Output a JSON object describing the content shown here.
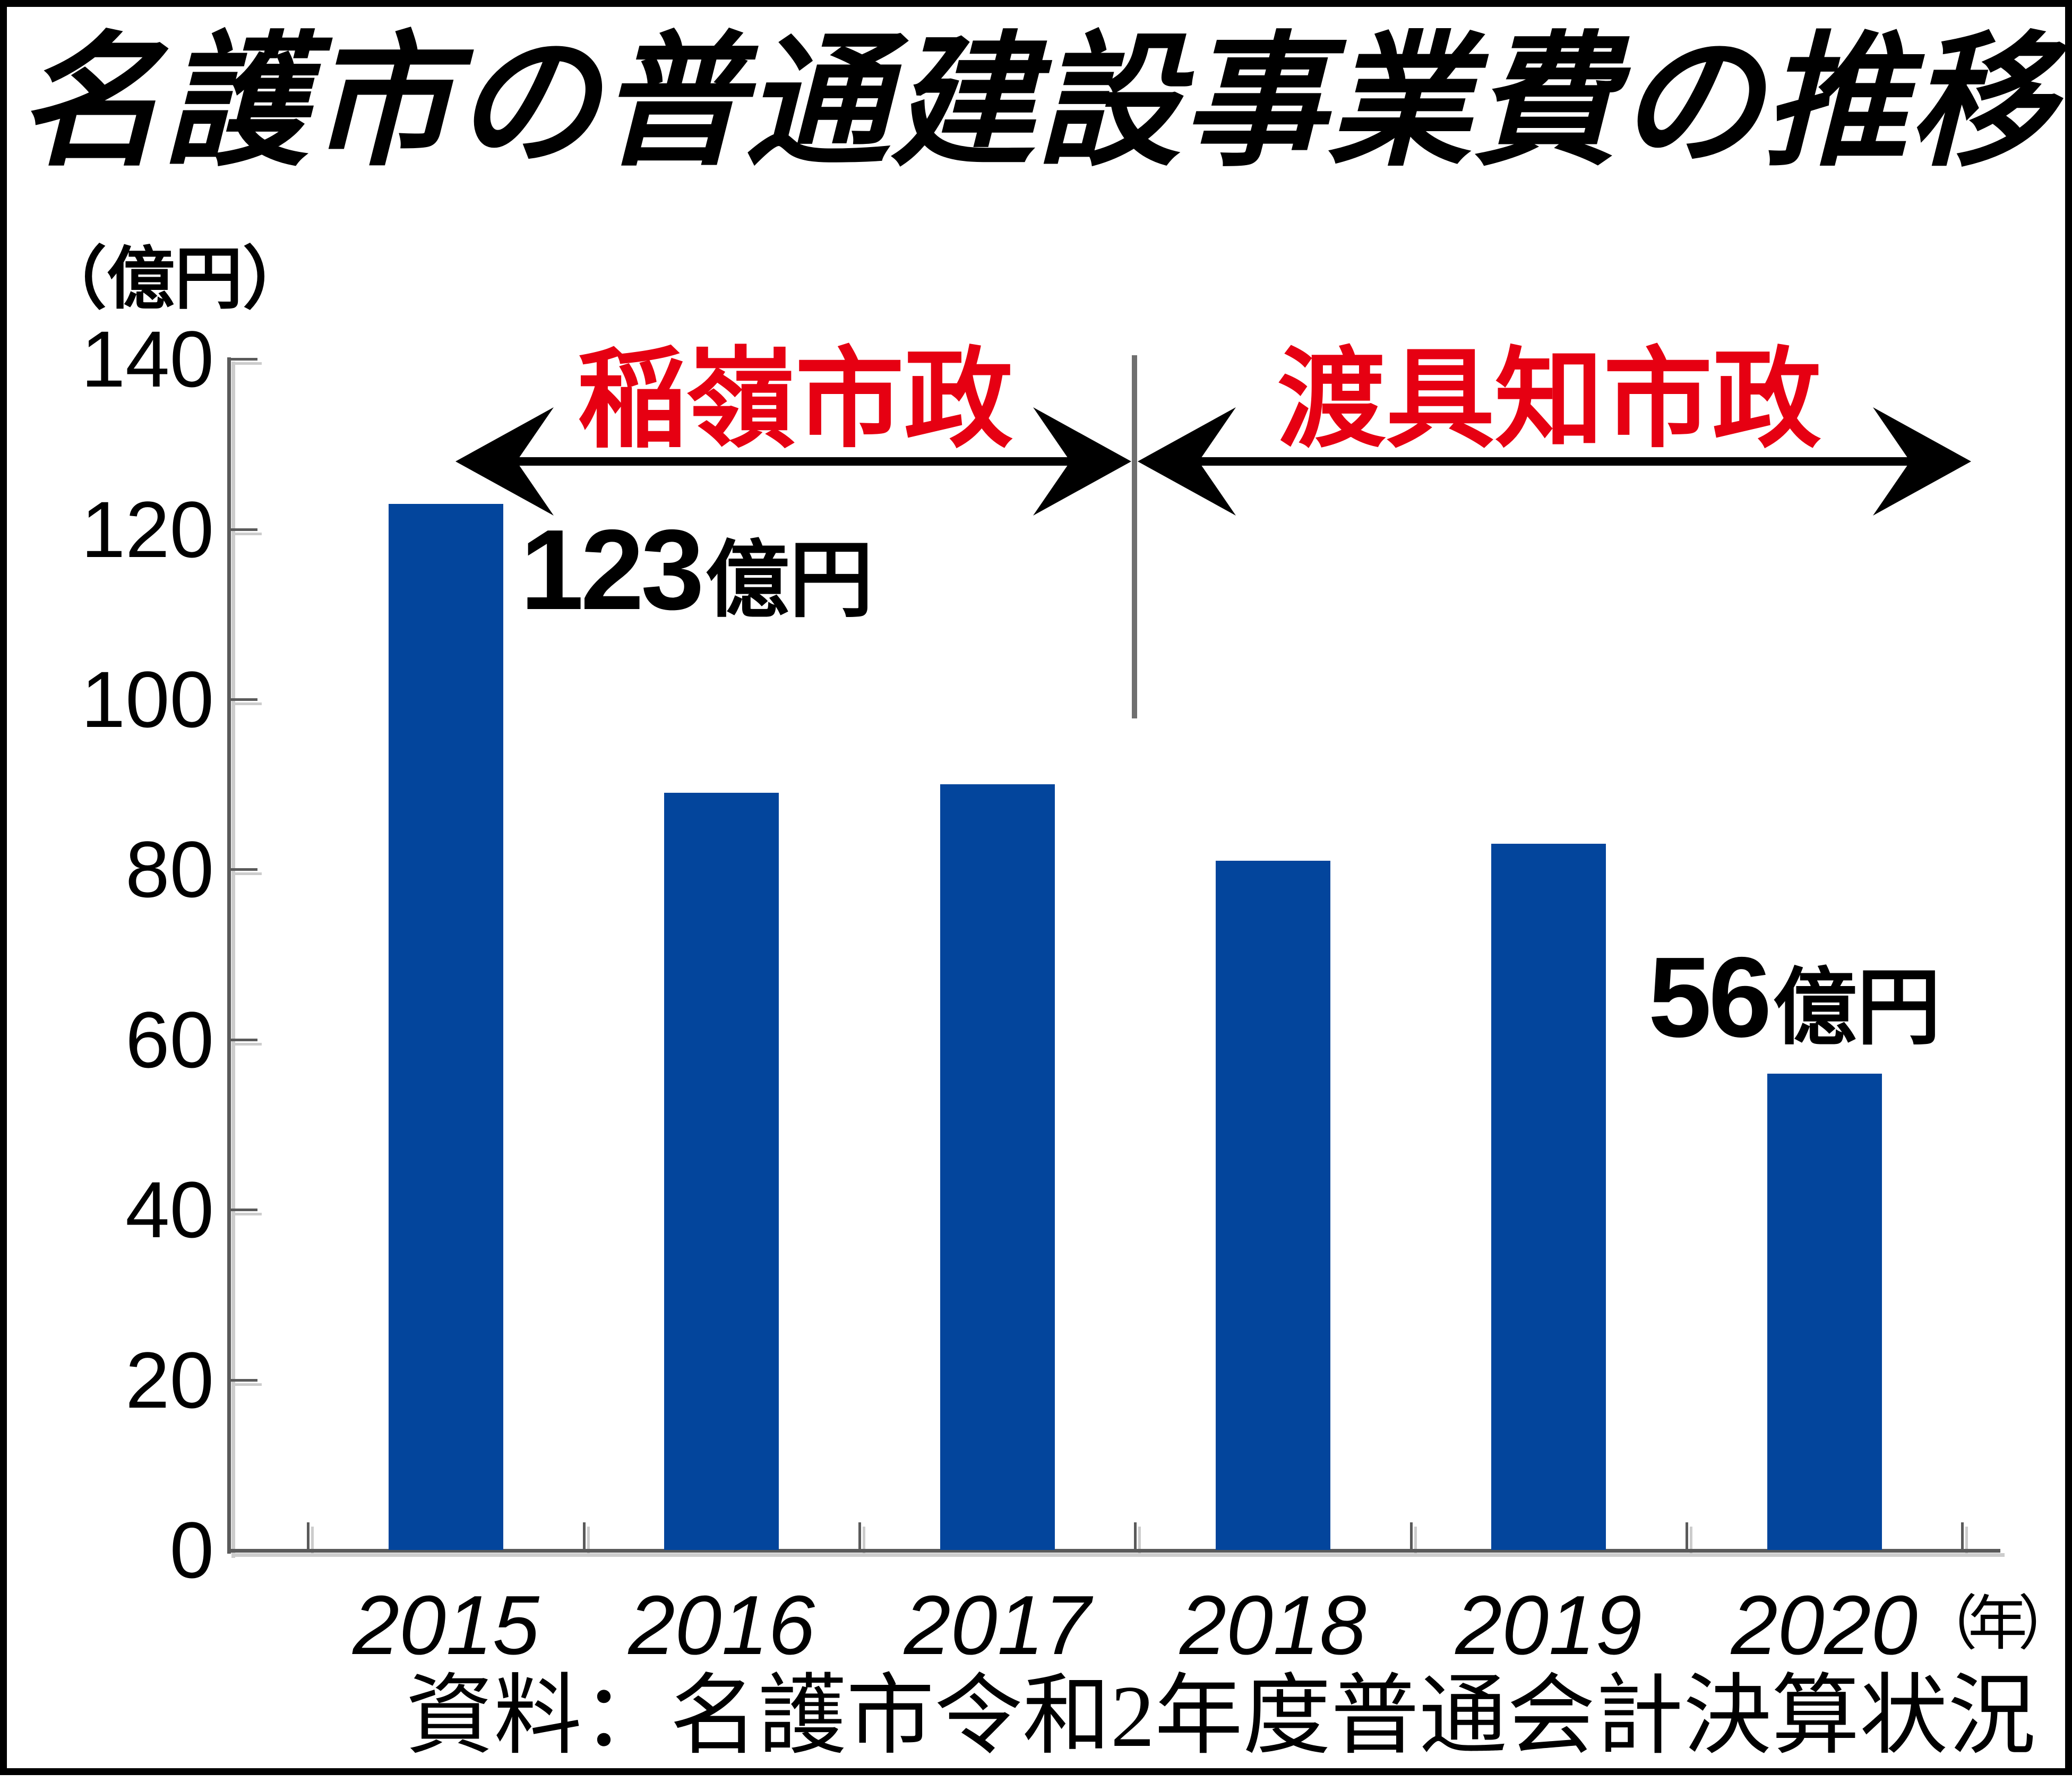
{
  "title": "名護市の普通建設事業費の推移",
  "y_axis_unit_label": "（億円）",
  "year_axis_suffix": "（年）",
  "era_annotations": {
    "left": {
      "label": "稲嶺市政"
    },
    "right": {
      "label": "渡具知市政"
    }
  },
  "source_note": "資料：名護市令和2年度普通会計決算状況",
  "colors": {
    "background": "#ffffff",
    "text": "#000000",
    "bar": "#03459c",
    "axis": "#5a5a5a",
    "axis_shadow": "#cccccc",
    "divider": "#6f6f6f",
    "era_text": "#e60012",
    "arrow": "#000000"
  },
  "chart_data": {
    "type": "bar",
    "title": "名護市の普通建設事業費の推移",
    "categories": [
      "2015",
      "2016",
      "2017",
      "2018",
      "2019",
      "2020"
    ],
    "values": [
      123,
      89,
      90,
      81,
      83,
      56
    ],
    "ylabel": "（億円）",
    "xlabel": "（年）",
    "y_ticks": [
      140,
      120,
      100,
      80,
      60,
      40,
      20,
      0
    ],
    "ylim": [
      0,
      140
    ],
    "grid": false,
    "legend": false,
    "bar_color": "#03459c",
    "annotations": [
      {
        "category": "2015",
        "value_text": "123",
        "unit_text": "億円"
      },
      {
        "category": "2020",
        "value_text": "56",
        "unit_text": "億円"
      }
    ],
    "era_spans": [
      {
        "label": "稲嶺市政",
        "from_category": "2015",
        "to_category": "2017"
      },
      {
        "label": "渡具知市政",
        "from_category": "2018",
        "to_category": "2020"
      }
    ]
  }
}
